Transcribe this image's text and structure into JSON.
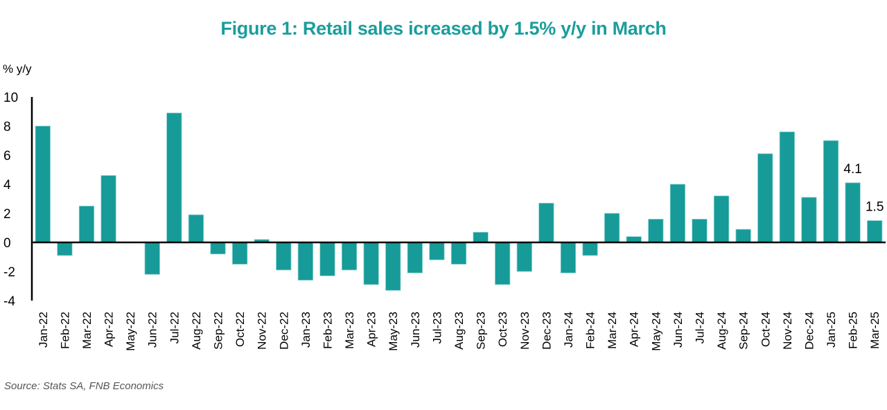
{
  "chart_data": {
    "type": "bar",
    "title": "Figure 1: Retail sales icreased by 1.5% y/y in March",
    "ylabel": "% y/y",
    "xlabel": "",
    "ylim": [
      -4,
      10
    ],
    "yticks": [
      "10",
      "8",
      "6",
      "4",
      "2",
      "0",
      "-2",
      "-4"
    ],
    "ytick_values": [
      10,
      8,
      6,
      4,
      2,
      0,
      -2,
      -4
    ],
    "grid": false,
    "bar_color": "#169b99",
    "title_color": "#1a9e9c",
    "categories": [
      "Jan-22",
      "Feb-22",
      "Mar-22",
      "Apr-22",
      "May-22",
      "Jun-22",
      "Jul-22",
      "Aug-22",
      "Sep-22",
      "Oct-22",
      "Nov-22",
      "Dec-22",
      "Jan-23",
      "Feb-23",
      "Mar-23",
      "Apr-23",
      "May-23",
      "Jun-23",
      "Jul-23",
      "Aug-23",
      "Sep-23",
      "Oct-23",
      "Nov-23",
      "Dec-23",
      "Jan-24",
      "Feb-24",
      "Mar-24",
      "Apr-24",
      "May-24",
      "Jun-24",
      "Jul-24",
      "Aug-24",
      "Sep-24",
      "Oct-24",
      "Nov-24",
      "Dec-24",
      "Jan-25",
      "Feb-25",
      "Mar-25"
    ],
    "values": [
      8.0,
      -0.9,
      2.5,
      4.6,
      0.0,
      -2.2,
      8.9,
      1.9,
      -0.8,
      -1.5,
      0.2,
      -1.9,
      -2.6,
      -2.3,
      -1.9,
      -2.9,
      -3.3,
      -2.1,
      -1.2,
      -1.5,
      0.7,
      -2.9,
      -2.0,
      2.7,
      -2.1,
      -0.9,
      2.0,
      0.4,
      1.6,
      4.0,
      1.6,
      3.2,
      0.9,
      6.1,
      7.6,
      3.1,
      7.0,
      4.1,
      1.5
    ],
    "data_labels": [
      {
        "category": "Feb-25",
        "text": "4.1"
      },
      {
        "category": "Mar-25",
        "text": "1.5"
      }
    ],
    "source": "Source: Stats SA, FNB Economics"
  }
}
